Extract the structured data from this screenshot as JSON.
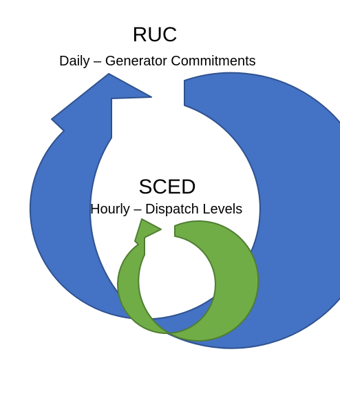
{
  "outer_cycle": {
    "title": "RUC",
    "subtitle": "Daily – Generator Commitments",
    "color": "#4472C4",
    "stroke": "#2F528F"
  },
  "inner_cycle": {
    "title": "SCED",
    "subtitle": "Hourly – Dispatch Levels",
    "color": "#70AD47",
    "stroke": "#507E32"
  }
}
